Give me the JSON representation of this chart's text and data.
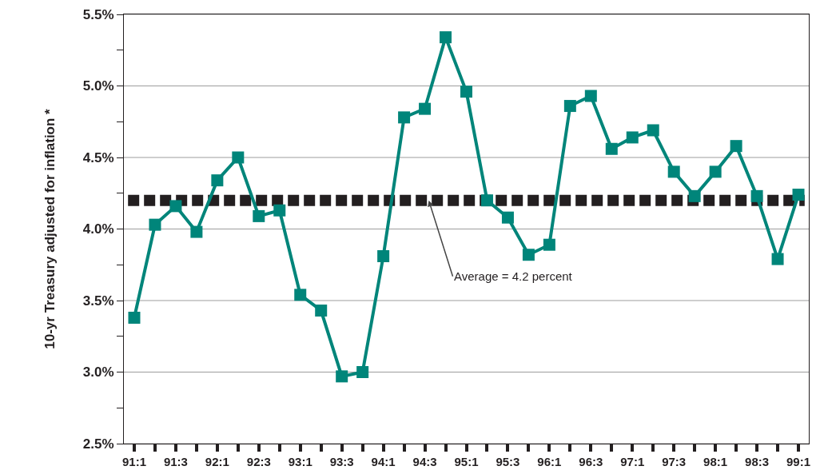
{
  "chart_data": {
    "type": "line",
    "ylabel": "10-yr Treasury adjusted for inflation *",
    "categories": [
      "91:1",
      null,
      "91:3",
      null,
      "92:1",
      null,
      "92:3",
      null,
      "93:1",
      null,
      "93:3",
      null,
      "94:1",
      null,
      "94:3",
      null,
      "95:1",
      null,
      "95:3",
      null,
      "96:1",
      null,
      "96:3",
      null,
      "97:1",
      null,
      "97:3",
      null,
      "98:1",
      null,
      "98:3",
      null,
      "99:1"
    ],
    "series": [
      {
        "color": "#00857a",
        "values": [
          3.38,
          4.03,
          4.16,
          3.98,
          4.34,
          4.5,
          4.09,
          4.13,
          3.54,
          3.43,
          2.97,
          3.0,
          3.81,
          4.78,
          4.84,
          5.34,
          4.96,
          4.2,
          4.08,
          3.82,
          3.89,
          4.86,
          4.93,
          4.56,
          4.64,
          4.69,
          4.4,
          4.23,
          4.4,
          4.58,
          4.23,
          3.79,
          4.24
        ]
      }
    ],
    "ylim": [
      2.5,
      5.5
    ],
    "yticks": [
      {
        "value": 2.5,
        "label": "2.5%"
      },
      {
        "value": 2.75,
        "label": null
      },
      {
        "value": 3.0,
        "label": "3.0%"
      },
      {
        "value": 3.25,
        "label": null
      },
      {
        "value": 3.5,
        "label": "3.5%"
      },
      {
        "value": 3.75,
        "label": null
      },
      {
        "value": 4.0,
        "label": "4.0%"
      },
      {
        "value": 4.25,
        "label": null
      },
      {
        "value": 4.5,
        "label": "4.5%"
      },
      {
        "value": 4.75,
        "label": null
      },
      {
        "value": 5.0,
        "label": "5.0%"
      },
      {
        "value": 5.25,
        "label": null
      },
      {
        "value": 5.5,
        "label": "5.5%"
      }
    ],
    "ref_lines": [
      {
        "axis": "y",
        "value": 4.2,
        "label": "Average = 4.2 percent",
        "color": "#231f20",
        "line_style": "dashed"
      }
    ],
    "grid": "y",
    "marker": "square",
    "line_style": "solid"
  }
}
